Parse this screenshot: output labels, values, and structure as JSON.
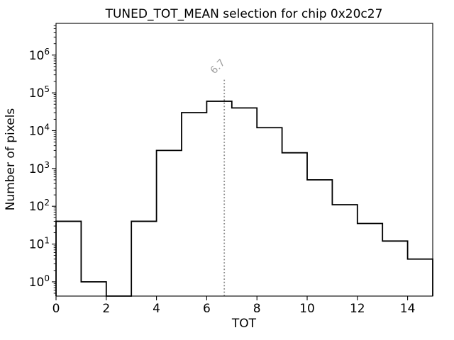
{
  "chart_data": {
    "type": "histogram",
    "title": "TUNED_TOT_MEAN selection for chip 0x20c27",
    "xlabel": "TOT",
    "ylabel": "Number of pixels",
    "yscale": "log",
    "bin_edges": [
      0,
      1,
      2,
      3,
      4,
      5,
      6,
      7,
      8,
      9,
      10,
      11,
      12,
      13,
      14,
      15
    ],
    "counts": [
      40,
      1,
      0,
      40,
      3000,
      30000,
      60000,
      40000,
      12000,
      2600,
      500,
      110,
      35,
      12,
      4
    ],
    "xlim": [
      0,
      15
    ],
    "ylim": [
      0.42,
      6900000
    ],
    "x_ticks": [
      0,
      2,
      4,
      6,
      8,
      10,
      12,
      14
    ],
    "y_tick_exponents": [
      0,
      1,
      2,
      3,
      4,
      5,
      6
    ],
    "grid": false,
    "legend_position": "none",
    "line_color": "#000000",
    "axis_color": "#000000",
    "background_color": "#ffffff",
    "threshold": {
      "x": 6.7,
      "label": "6.7",
      "style": "dotted",
      "color": "#8c8c8c",
      "label_color": "#a0a0a0",
      "height_fraction": 0.8
    }
  }
}
